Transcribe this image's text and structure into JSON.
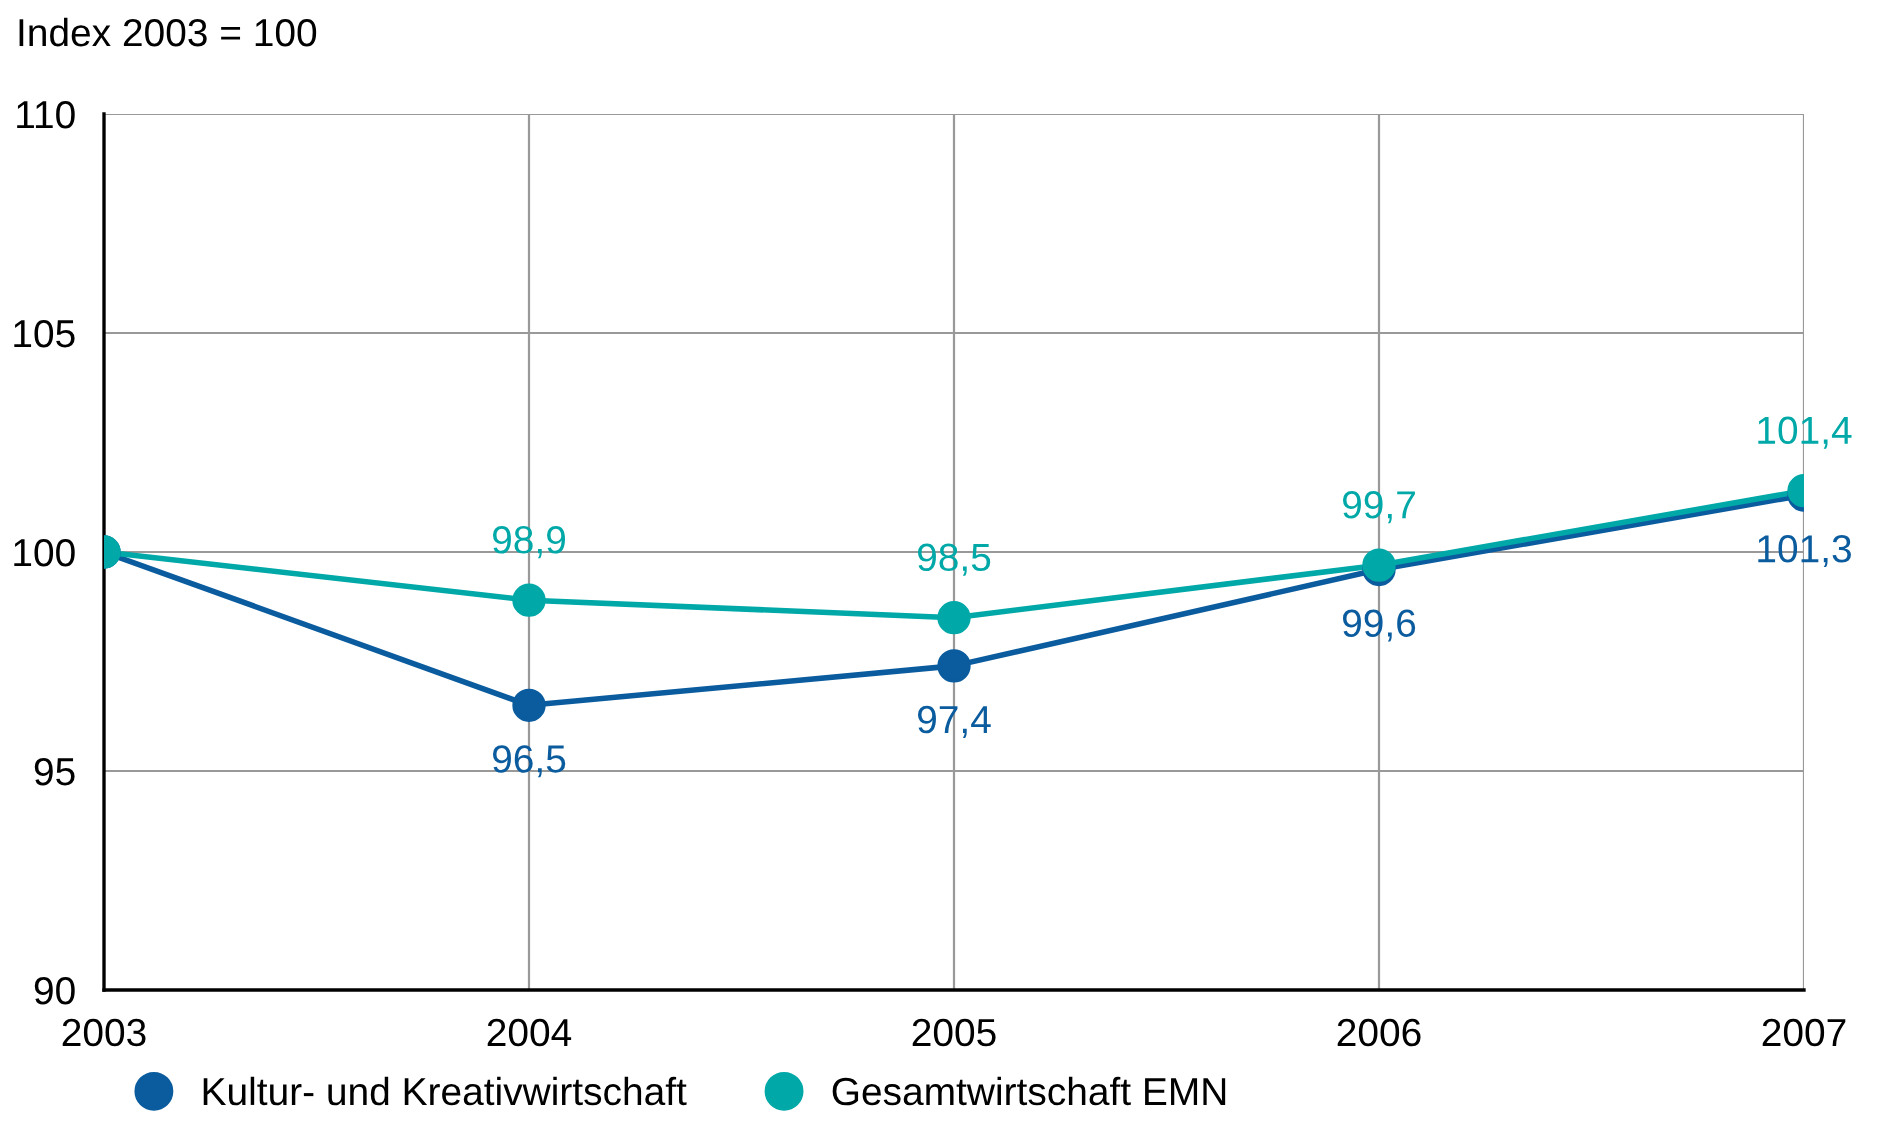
{
  "chart_data": {
    "type": "line",
    "ylabel": "Index 2003 = 100",
    "x": [
      2003,
      2004,
      2005,
      2006,
      2007
    ],
    "xlim": [
      2003,
      2007
    ],
    "xticks": [
      2003,
      2004,
      2005,
      2006,
      2007
    ],
    "ylim": [
      90,
      110
    ],
    "yticks": [
      90,
      95,
      100,
      105,
      110
    ],
    "grid": true,
    "legend": "bottom",
    "marker": "circle",
    "line_style": "solid",
    "series": [
      {
        "name": "Kultur- und Kreativwirtschaft",
        "color": "#0b5c9e",
        "values": [
          100,
          96.5,
          97.4,
          99.6,
          101.3
        ],
        "value_labels": [
          null,
          "96,5",
          "97,4",
          "99,6",
          "101,3"
        ]
      },
      {
        "name": "Gesamtwirtschaft EMN",
        "color": "#00a8a8",
        "values": [
          100,
          98.9,
          98.5,
          99.7,
          101.4
        ],
        "value_labels": [
          null,
          "98,9",
          "98,5",
          "99,7",
          "101,4"
        ]
      }
    ]
  }
}
